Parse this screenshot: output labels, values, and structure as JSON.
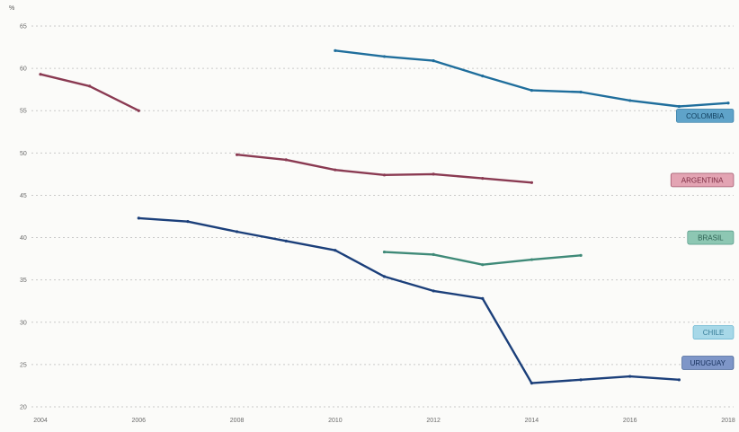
{
  "chart_data": {
    "type": "line",
    "title": "",
    "unit_label": "%",
    "xlabel": "",
    "ylabel": "",
    "xlim": [
      2004,
      2018
    ],
    "ylim": [
      20,
      65
    ],
    "x_ticks": [
      2004,
      2006,
      2008,
      2010,
      2012,
      2014,
      2016,
      2018
    ],
    "y_ticks": [
      20,
      25,
      30,
      35,
      40,
      45,
      50,
      55,
      60,
      65
    ],
    "grid": true,
    "legend": "labels at right end of each series",
    "series": [
      {
        "name": "COLOMBIA",
        "color": "#1f6e9c",
        "tag_color": "#5fa3c9",
        "tag_text_color": "#0f3d5c",
        "tag_y": 54.4,
        "points": [
          [
            2010,
            62.1
          ],
          [
            2011,
            61.4
          ],
          [
            2012,
            60.9
          ],
          [
            2013,
            59.1
          ],
          [
            2014,
            57.4
          ],
          [
            2015,
            57.2
          ],
          [
            2016,
            56.2
          ],
          [
            2017,
            55.5
          ],
          [
            2018,
            55.9
          ]
        ]
      },
      {
        "name": "ARGENTINA",
        "color": "#8a3a52",
        "tag_color": "#e3a4b3",
        "tag_text_color": "#7a2a40",
        "tag_y": 46.8,
        "segments": [
          [
            [
              2004,
              59.3
            ],
            [
              2005,
              57.9
            ],
            [
              2006,
              55.0
            ]
          ],
          [
            [
              2008,
              49.8
            ],
            [
              2009,
              49.2
            ],
            [
              2010,
              48.0
            ],
            [
              2011,
              47.4
            ],
            [
              2012,
              47.5
            ],
            [
              2013,
              47.0
            ],
            [
              2014,
              46.5
            ]
          ]
        ]
      },
      {
        "name": "BRASIL",
        "color": "#3f8a78",
        "tag_color": "#8dc7b3",
        "tag_text_color": "#2b5f50",
        "tag_y": 40.0,
        "points": [
          [
            2011,
            38.3
          ],
          [
            2012,
            38.0
          ],
          [
            2013,
            36.8
          ],
          [
            2014,
            37.4
          ],
          [
            2015,
            37.9
          ]
        ]
      },
      {
        "name": "CHILE",
        "color": "#4fa8c8",
        "tag_color": "#a7d8e8",
        "tag_text_color": "#3a7f9a",
        "tag_y": 28.8,
        "points": []
      },
      {
        "name": "URUGUAY",
        "color": "#1b3f7a",
        "tag_color": "#7e96c8",
        "tag_text_color": "#16305c",
        "tag_y": 25.2,
        "points": [
          [
            2006,
            42.3
          ],
          [
            2007,
            41.9
          ],
          [
            2008,
            40.7
          ],
          [
            2009,
            39.6
          ],
          [
            2010,
            38.5
          ],
          [
            2011,
            35.4
          ],
          [
            2012,
            33.7
          ],
          [
            2013,
            32.8
          ],
          [
            2014,
            22.8
          ],
          [
            2015,
            23.2
          ],
          [
            2016,
            23.6
          ],
          [
            2017,
            23.2
          ]
        ]
      }
    ]
  }
}
